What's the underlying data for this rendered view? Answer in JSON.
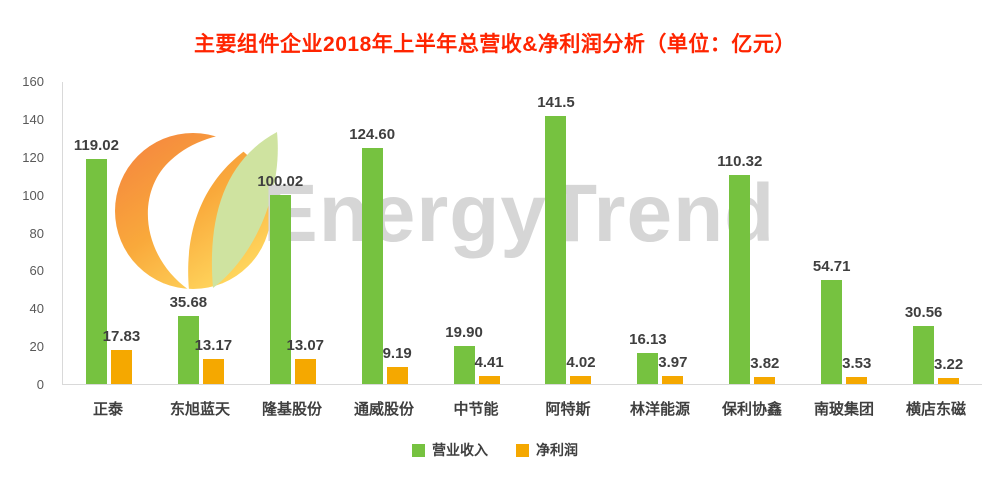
{
  "watermark": {
    "text": "EnergyTrend"
  },
  "colors": {
    "title": "#ff2400",
    "axis_text": "#595959",
    "label_text": "#3f3f3f",
    "axis_line": "#d9d9d9",
    "watermark_text": "#d6d6d6",
    "revenue_bar": "#76C240",
    "profit_bar": "#F5A800"
  },
  "chart_data": {
    "type": "bar",
    "title": "主要组件企业2018年上半年总营收&净利润分析（单位：亿元）",
    "categories": [
      "正泰",
      "东旭蓝天",
      "隆基股份",
      "通威股份",
      "中节能",
      "阿特斯",
      "林洋能源",
      "保利协鑫",
      "南玻集团",
      "横店东磁"
    ],
    "series": [
      {
        "key": "revenue",
        "name": "营业收入",
        "color": "#76C240",
        "values": [
          119.02,
          35.68,
          100.02,
          124.6,
          19.9,
          141.5,
          16.13,
          110.32,
          54.71,
          30.56
        ],
        "labels": [
          "119.02",
          "35.68",
          "100.02",
          "124.60",
          "19.90",
          "141.5",
          "16.13",
          "110.32",
          "54.71",
          "30.56"
        ]
      },
      {
        "key": "net-profit",
        "name": "净利润",
        "color": "#F5A800",
        "values": [
          17.83,
          13.17,
          13.07,
          9.19,
          4.41,
          4.02,
          3.97,
          3.82,
          3.53,
          3.22
        ],
        "labels": [
          "17.83",
          "13.17",
          "13.07",
          "9.19",
          "4.41",
          "4.02",
          "3.97",
          "3.82",
          "3.53",
          "3.22"
        ]
      }
    ],
    "xlabel": "",
    "ylabel": "",
    "ylim": [
      0,
      160
    ],
    "ytick_step": 20,
    "grid": false,
    "legend_position": "bottom"
  }
}
